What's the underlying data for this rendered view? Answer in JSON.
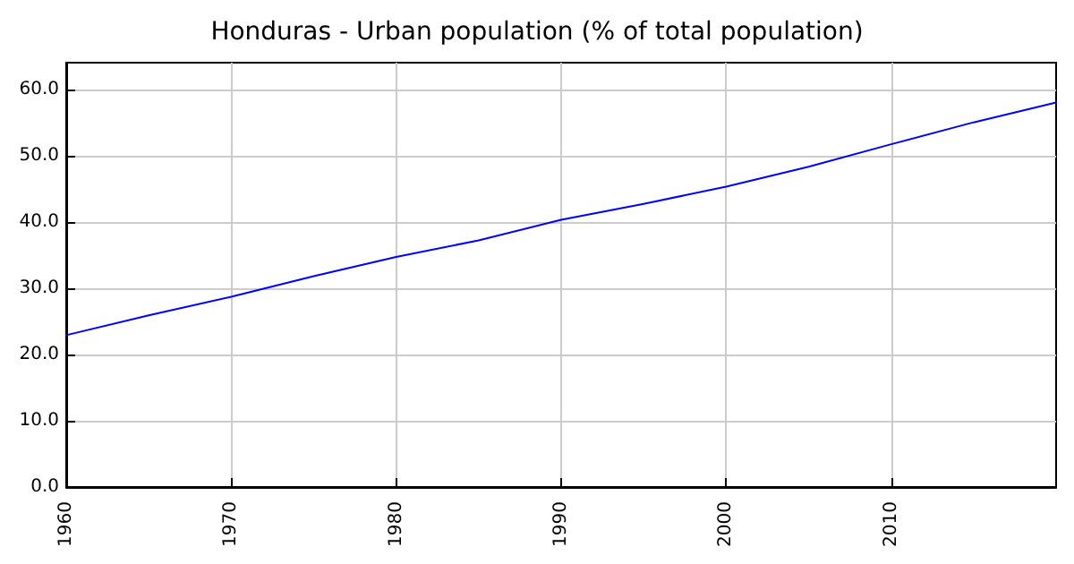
{
  "chart_data": {
    "type": "line",
    "title": "Honduras - Urban population (% of total population)",
    "x": [
      1960,
      1965,
      1970,
      1975,
      1980,
      1985,
      1990,
      1995,
      2000,
      2005,
      2010,
      2015,
      2020
    ],
    "series": [
      {
        "color": "#0000ff",
        "values": [
          22.9,
          25.9,
          28.7,
          31.8,
          34.7,
          37.2,
          40.3,
          42.7,
          45.3,
          48.3,
          51.7,
          55.0,
          58.0
        ]
      }
    ],
    "xlim": [
      1960,
      2020
    ],
    "xticks": [
      1960,
      1970,
      1980,
      1990,
      2000,
      2010
    ],
    "ylim": [
      0,
      64
    ],
    "yticks": [
      {
        "value": 0,
        "label": "0.0"
      },
      {
        "value": 10,
        "label": "10.0"
      },
      {
        "value": 20,
        "label": "20.0"
      },
      {
        "value": 30,
        "label": "30.0"
      },
      {
        "value": 40,
        "label": "40.0"
      },
      {
        "value": 50,
        "label": "50.0"
      },
      {
        "value": 60,
        "label": "60.0"
      }
    ],
    "grid": true,
    "marker": "none",
    "line_style": "solid"
  }
}
